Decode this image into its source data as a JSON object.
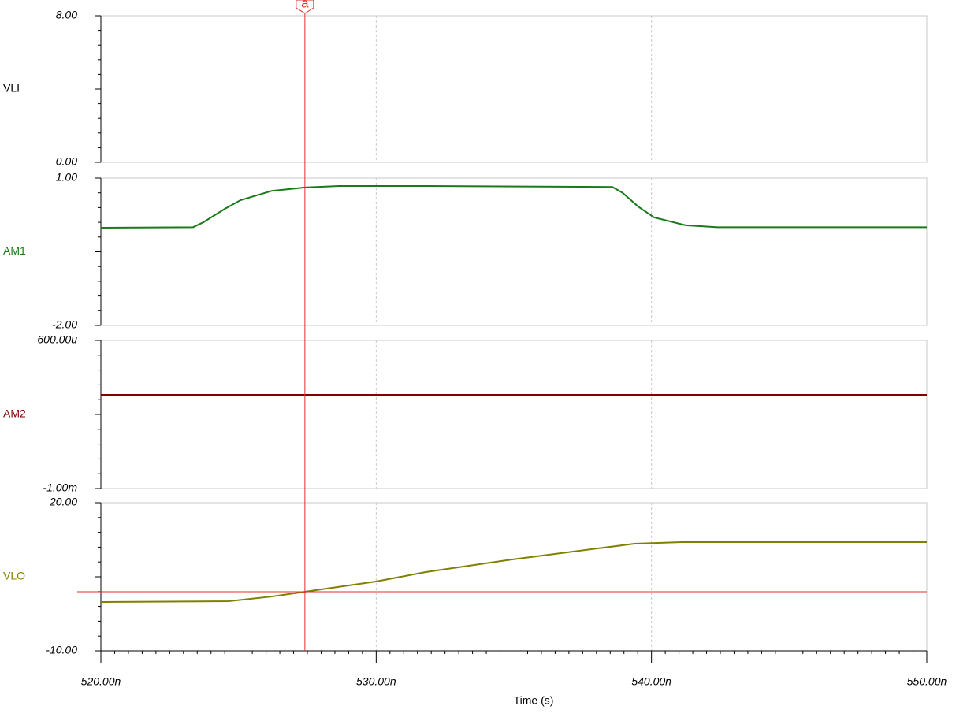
{
  "chart_data": [
    {
      "type": "line",
      "xlim": [
        520,
        550
      ],
      "ylim": [
        0,
        8
      ],
      "yticks": [
        {
          "value": 8,
          "label": "8.00"
        },
        {
          "value": 0,
          "label": "0.00"
        }
      ],
      "series": [
        {
          "name": "VLI",
          "color": "#000000"
        }
      ]
    },
    {
      "type": "line",
      "xlim": [
        520,
        550
      ],
      "ylim": [
        -2,
        1
      ],
      "yticks": [
        {
          "value": 1,
          "label": "1.00"
        },
        {
          "value": -2,
          "label": "-2.00"
        }
      ],
      "x": [
        520,
        523.35,
        523.72,
        524.49,
        525.07,
        526.21,
        527.41,
        528.65,
        531.8,
        538.58,
        538.95,
        539.52,
        540.09,
        541.24,
        542.39,
        550
      ],
      "series": [
        {
          "name": "AM1",
          "color": "#1a7a1a",
          "values": [
            -0.01,
            0.0,
            0.1,
            0.37,
            0.55,
            0.74,
            0.81,
            0.84,
            0.84,
            0.82,
            0.7,
            0.42,
            0.2,
            0.04,
            0.0,
            0.0
          ]
        }
      ]
    },
    {
      "type": "line",
      "xlim": [
        520,
        550
      ],
      "ylim": [
        -0.001,
        0.0006
      ],
      "yticks": [
        {
          "value": 0.0006,
          "label": "600.00u"
        },
        {
          "value": -0.001,
          "label": "-1.00m"
        }
      ],
      "x": [
        520,
        550
      ],
      "series": [
        {
          "name": "AM2",
          "color": "#800000",
          "values": [
            1.3e-05,
            1.3e-05
          ]
        }
      ]
    },
    {
      "type": "line",
      "xlim": [
        520,
        550
      ],
      "ylim": [
        -10,
        20
      ],
      "yticks": [
        {
          "value": 20,
          "label": "20.00"
        },
        {
          "value": -10,
          "label": "-10.00"
        }
      ],
      "xticks": [
        {
          "value": 520,
          "label": "520.00n"
        },
        {
          "value": 530,
          "label": "530.00n"
        },
        {
          "value": 540,
          "label": "540.00n"
        },
        {
          "value": 550,
          "label": "550.00n"
        }
      ],
      "xlabel": "Time (s)",
      "grid": true,
      "x": [
        520,
        524.64,
        526.21,
        527.41,
        529.99,
        531.8,
        534.94,
        539.38,
        541.1,
        550
      ],
      "series": [
        {
          "name": "VLO",
          "color": "#808000",
          "values": [
            -0.1,
            0.05,
            1.0,
            1.97,
            4.04,
            5.96,
            8.51,
            11.7,
            12.02,
            12.02
          ]
        }
      ]
    }
  ],
  "cursor": {
    "label": "a",
    "x": 527.41,
    "y": 1.97,
    "color": "#e03030"
  }
}
